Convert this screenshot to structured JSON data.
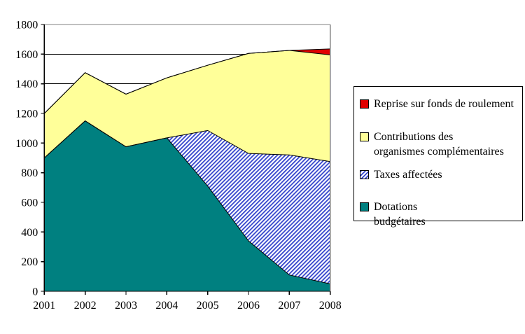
{
  "chart_data": {
    "type": "area",
    "stacked": true,
    "title": "",
    "xlabel": "",
    "ylabel": "",
    "categories": [
      "2001",
      "2002",
      "2003",
      "2004",
      "2005",
      "2006",
      "2007",
      "2008"
    ],
    "series": [
      {
        "name": "Dotations budgétaires",
        "values": [
          900,
          1150,
          975,
          1035,
          710,
          340,
          110,
          50
        ],
        "fill": "solid",
        "color": "#008080"
      },
      {
        "name": "Taxes affectées",
        "values": [
          0,
          0,
          0,
          0,
          375,
          590,
          810,
          825
        ],
        "fill": "hatch",
        "color": "#3344CC"
      },
      {
        "name": "Contributions des organismes complémentaires",
        "values": [
          300,
          325,
          355,
          405,
          440,
          675,
          705,
          720
        ],
        "fill": "solid",
        "color": "#FFFF99"
      },
      {
        "name": "Reprise sur fonds de roulement",
        "values": [
          0,
          0,
          0,
          0,
          0,
          0,
          0,
          40
        ],
        "fill": "solid",
        "color": "#E00000"
      }
    ],
    "stack_tops": [
      1200,
      1475,
      1330,
      1440,
      1525,
      1605,
      1625,
      1635
    ],
    "ylim": [
      0,
      1800
    ],
    "ytick_step": 200,
    "y_tick_labels": [
      "0",
      "200",
      "400",
      "600",
      "800",
      "1000",
      "1200",
      "1400",
      "1600",
      "1800"
    ],
    "grid": true,
    "legend_position": "right",
    "colors": {
      "teal": "#008080",
      "pale_yellow": "#FFFF99",
      "hatch_blue": "#3344CC",
      "red": "#E00000",
      "axis": "#000000",
      "gridline": "#000000",
      "plot_border_gray": "#808080",
      "background": "#FFFFFF"
    }
  },
  "legend": {
    "items": [
      {
        "label": "Reprise sur fonds de roulement",
        "marker": "solid",
        "color": "#E00000"
      },
      {
        "label": "Contributions des\norganismes complémentaires",
        "marker": "solid",
        "color": "#FFFF99"
      },
      {
        "label": "Taxes affectées",
        "marker": "hatch",
        "color": "#3344CC"
      },
      {
        "label": "Dotations\nbudgétaires",
        "marker": "solid",
        "color": "#008080"
      }
    ]
  }
}
